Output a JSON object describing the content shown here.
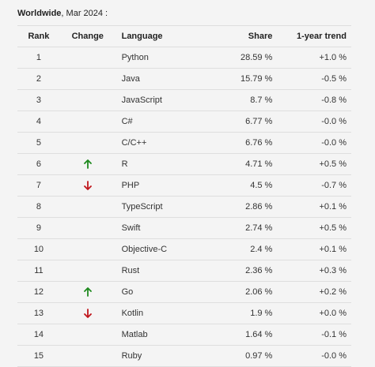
{
  "caption": {
    "region": "Worldwide",
    "date": ", Mar 2024 :"
  },
  "columns": {
    "rank": "Rank",
    "change": "Change",
    "language": "Language",
    "share": "Share",
    "trend": "1-year trend"
  },
  "colors": {
    "up": "#1f8a1f",
    "down": "#c0161c"
  },
  "rows": [
    {
      "rank": "1",
      "change": "",
      "language": "Python",
      "share": "28.59 %",
      "trend": "+1.0 %"
    },
    {
      "rank": "2",
      "change": "",
      "language": "Java",
      "share": "15.79 %",
      "trend": "-0.5 %"
    },
    {
      "rank": "3",
      "change": "",
      "language": "JavaScript",
      "share": "8.7 %",
      "trend": "-0.8 %"
    },
    {
      "rank": "4",
      "change": "",
      "language": "C#",
      "share": "6.77 %",
      "trend": "-0.0 %"
    },
    {
      "rank": "5",
      "change": "",
      "language": "C/C++",
      "share": "6.76 %",
      "trend": "-0.0 %"
    },
    {
      "rank": "6",
      "change": "up-arrow-icon",
      "language": "R",
      "share": "4.71 %",
      "trend": "+0.5 %"
    },
    {
      "rank": "7",
      "change": "down-arrow-icon",
      "language": "PHP",
      "share": "4.5 %",
      "trend": "-0.7 %"
    },
    {
      "rank": "8",
      "change": "",
      "language": "TypeScript",
      "share": "2.86 %",
      "trend": "+0.1 %"
    },
    {
      "rank": "9",
      "change": "",
      "language": "Swift",
      "share": "2.74 %",
      "trend": "+0.5 %"
    },
    {
      "rank": "10",
      "change": "",
      "language": "Objective-C",
      "share": "2.4 %",
      "trend": "+0.1 %"
    },
    {
      "rank": "11",
      "change": "",
      "language": "Rust",
      "share": "2.36 %",
      "trend": "+0.3 %"
    },
    {
      "rank": "12",
      "change": "up-arrow-icon",
      "language": "Go",
      "share": "2.06 %",
      "trend": "+0.2 %"
    },
    {
      "rank": "13",
      "change": "down-arrow-icon",
      "language": "Kotlin",
      "share": "1.9 %",
      "trend": "+0.0 %"
    },
    {
      "rank": "14",
      "change": "",
      "language": "Matlab",
      "share": "1.64 %",
      "trend": "-0.1 %"
    },
    {
      "rank": "15",
      "change": "",
      "language": "Ruby",
      "share": "0.97 %",
      "trend": "-0.0 %"
    }
  ]
}
